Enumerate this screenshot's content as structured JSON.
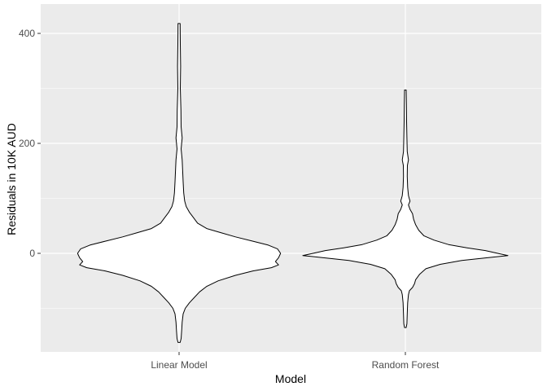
{
  "chart_data": {
    "type": "violin",
    "title": "",
    "xlabel": "Model",
    "ylabel": "Residuals in 10K AUD",
    "categories": [
      "Linear Model",
      "Random Forest"
    ],
    "ylim": [
      -180,
      430
    ],
    "yticks": [
      0,
      200,
      400
    ],
    "ytick_labels": [
      "0",
      "200",
      "400"
    ],
    "grid": true,
    "legend": "none",
    "colors": {
      "panel": "#ebebeb",
      "grid": "#ffffff",
      "fill": "#ffffff",
      "outline": "#000000"
    },
    "series": [
      {
        "category": "Linear Model",
        "profile": [
          [
            418,
            0.01
          ],
          [
            380,
            0.012
          ],
          [
            340,
            0.015
          ],
          [
            300,
            0.012
          ],
          [
            260,
            0.018
          ],
          [
            230,
            0.02
          ],
          [
            210,
            0.03
          ],
          [
            190,
            0.02
          ],
          [
            170,
            0.03
          ],
          [
            150,
            0.035
          ],
          [
            130,
            0.04
          ],
          [
            110,
            0.045
          ],
          [
            95,
            0.055
          ],
          [
            85,
            0.07
          ],
          [
            75,
            0.1
          ],
          [
            65,
            0.14
          ],
          [
            55,
            0.18
          ],
          [
            45,
            0.27
          ],
          [
            38,
            0.4
          ],
          [
            30,
            0.55
          ],
          [
            22,
            0.72
          ],
          [
            15,
            0.87
          ],
          [
            8,
            0.96
          ],
          [
            0,
            0.99
          ],
          [
            -8,
            0.97
          ],
          [
            -15,
            0.94
          ],
          [
            -21,
            0.97
          ],
          [
            -26,
            0.9
          ],
          [
            -32,
            0.72
          ],
          [
            -40,
            0.55
          ],
          [
            -50,
            0.38
          ],
          [
            -60,
            0.27
          ],
          [
            -70,
            0.2
          ],
          [
            -80,
            0.15
          ],
          [
            -90,
            0.1
          ],
          [
            -100,
            0.06
          ],
          [
            -110,
            0.04
          ],
          [
            -125,
            0.03
          ],
          [
            -140,
            0.025
          ],
          [
            -155,
            0.02
          ],
          [
            -162,
            0.01
          ]
        ]
      },
      {
        "category": "Random Forest",
        "profile": [
          [
            297,
            0.008
          ],
          [
            270,
            0.01
          ],
          [
            240,
            0.012
          ],
          [
            210,
            0.015
          ],
          [
            185,
            0.018
          ],
          [
            170,
            0.03
          ],
          [
            160,
            0.02
          ],
          [
            140,
            0.018
          ],
          [
            120,
            0.022
          ],
          [
            105,
            0.03
          ],
          [
            95,
            0.045
          ],
          [
            88,
            0.03
          ],
          [
            80,
            0.045
          ],
          [
            72,
            0.07
          ],
          [
            62,
            0.08
          ],
          [
            52,
            0.1
          ],
          [
            42,
            0.13
          ],
          [
            32,
            0.18
          ],
          [
            24,
            0.28
          ],
          [
            16,
            0.42
          ],
          [
            10,
            0.6
          ],
          [
            5,
            0.78
          ],
          [
            0,
            0.9
          ],
          [
            -4,
            1.0
          ],
          [
            -8,
            0.8
          ],
          [
            -13,
            0.55
          ],
          [
            -20,
            0.34
          ],
          [
            -28,
            0.2
          ],
          [
            -38,
            0.14
          ],
          [
            -48,
            0.1
          ],
          [
            -55,
            0.09
          ],
          [
            -62,
            0.07
          ],
          [
            -68,
            0.04
          ],
          [
            -75,
            0.03
          ],
          [
            -90,
            0.022
          ],
          [
            -110,
            0.018
          ],
          [
            -128,
            0.015
          ],
          [
            -135,
            0.008
          ]
        ]
      }
    ]
  }
}
